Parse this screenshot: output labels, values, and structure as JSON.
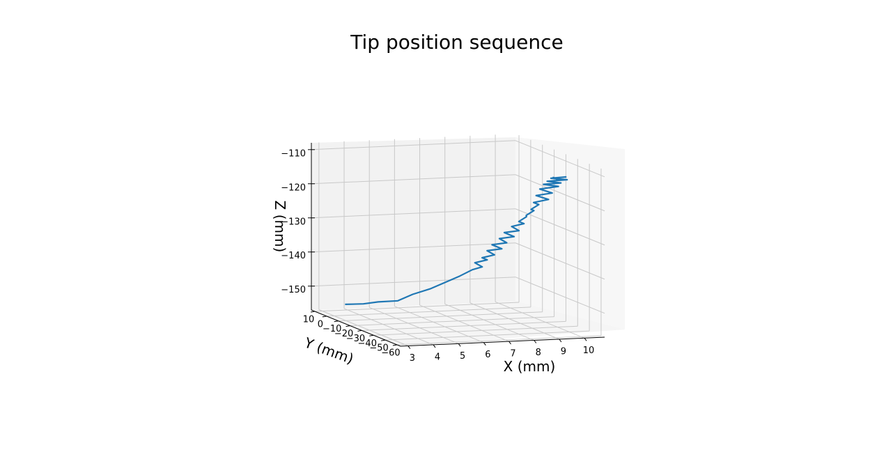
{
  "chart_data": {
    "type": "line",
    "title": "Tip position sequence",
    "xlabel": "X (mm)",
    "ylabel": "Y (mm)",
    "zlabel": "Z (mm)",
    "xlim": [
      2.7,
      10.8
    ],
    "ylim": [
      -63,
      13
    ],
    "zlim": [
      -157,
      -108
    ],
    "x_ticks": [
      3,
      4,
      5,
      6,
      7,
      8,
      9,
      10
    ],
    "y_ticks": [
      10,
      0,
      -10,
      -20,
      -30,
      -40,
      -50,
      -60
    ],
    "y_tick_labels": [
      "10",
      "0",
      "−10",
      "−20",
      "−30",
      "−40",
      "−50",
      "−60"
    ],
    "z_ticks": [
      -110,
      -120,
      -130,
      -140,
      -150
    ],
    "z_tick_labels": [
      "−110",
      "−120",
      "−130",
      "−140",
      "−150"
    ],
    "grid": true,
    "color": "#1f77b4",
    "series": [
      {
        "x": [
          3.2,
          3.6,
          4.0,
          4.5,
          5.0,
          5.5,
          6.0,
          6.5,
          6.9,
          7.2,
          7.0,
          7.4,
          7.1,
          7.5,
          7.3,
          7.7,
          7.4,
          7.8,
          7.6,
          8.0,
          7.7,
          8.1,
          7.9,
          8.3,
          8.0,
          8.4,
          8.2,
          8.6,
          8.3,
          8.7,
          8.4,
          8.9,
          8.5,
          9.0,
          8.6,
          9.2,
          8.7,
          9.3,
          8.8,
          9.5,
          8.9,
          9.4,
          9.0,
          9.2,
          8.9,
          9.1
        ],
        "y": [
          -5,
          -12,
          -16,
          -22,
          -24,
          -28,
          -30,
          -32,
          -34,
          -36,
          -34,
          -36,
          -38,
          -40,
          -38,
          -42,
          -40,
          -44,
          -42,
          -46,
          -44,
          -48,
          -46,
          -48,
          -50,
          -48,
          -52,
          -50,
          -54,
          -52,
          -54,
          -56,
          -54,
          -57,
          -55,
          -58,
          -56,
          -58,
          -57,
          -59,
          -58,
          -60,
          -58,
          -59,
          -60,
          -60
        ],
        "z": [
          -153,
          -152,
          -151,
          -150,
          -148,
          -146,
          -144,
          -142,
          -140,
          -139,
          -138,
          -137,
          -136,
          -135,
          -134,
          -133,
          -132,
          -131,
          -130,
          -129,
          -128,
          -127,
          -126,
          -125,
          -124,
          -123,
          -122,
          -121,
          -120,
          -119,
          -118,
          -117,
          -116,
          -115,
          -114,
          -113,
          -112.5,
          -112,
          -111.5,
          -111,
          -110.5,
          -110,
          -110.5,
          -111,
          -110,
          -110.5
        ]
      }
    ]
  }
}
